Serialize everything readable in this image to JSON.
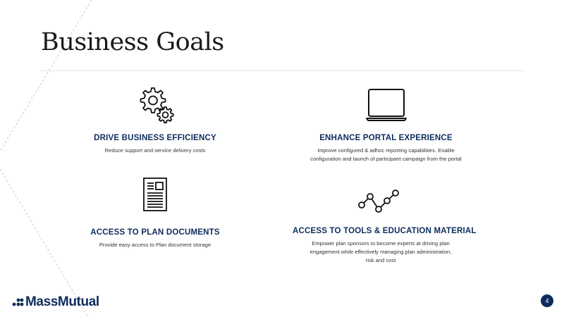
{
  "slide": {
    "title": "Business Goals",
    "page_number": "4",
    "brand": "MassMutual",
    "accent_color": "#0d2c5c"
  },
  "goals": [
    {
      "icon": "gears-icon",
      "heading": "DRIVE BUSINESS EFFICIENCY",
      "lines": [
        "Reduce support and service delivery costs"
      ]
    },
    {
      "icon": "laptop-icon",
      "heading": "ENHANCE PORTAL EXPERIENCE",
      "lines": [
        "Improve configured & adhoc reporting capabilities. Enable",
        "configuration and launch of participant campaign from the portal"
      ]
    },
    {
      "icon": "document-icon",
      "heading": "ACCESS TO PLAN DOCUMENTS",
      "lines": [
        "Provide easy access to Plan document storage"
      ]
    },
    {
      "icon": "line-chart-icon",
      "heading": "ACCESS TO TOOLS & EDUCATION MATERIAL",
      "lines": [
        "Empower plan sponsors to become experts at driving plan",
        "engagement while effectively managing plan administration,",
        "risk and cost"
      ]
    }
  ]
}
